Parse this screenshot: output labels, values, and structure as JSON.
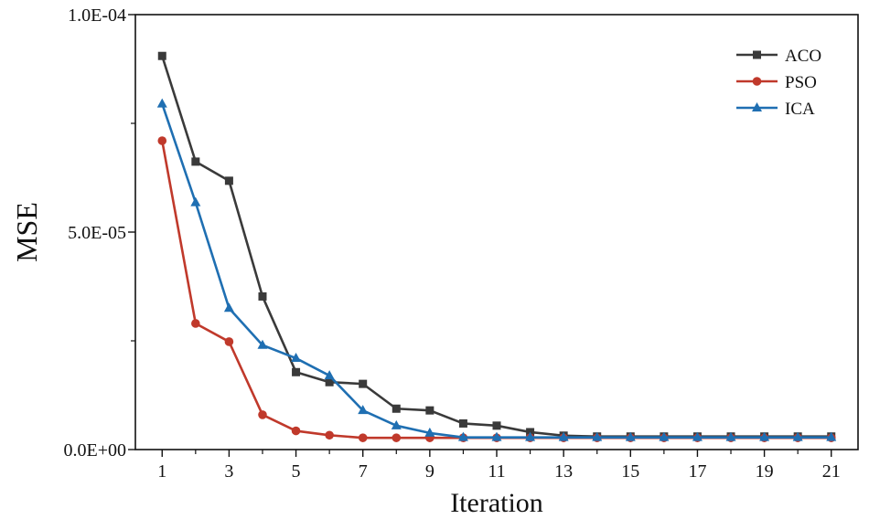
{
  "chart_data": {
    "type": "line",
    "title": "",
    "xlabel": "Iteration",
    "ylabel": "MSE",
    "xlim": [
      0.2,
      21.8
    ],
    "ylim": [
      0,
      0.0001
    ],
    "x_ticks": [
      1,
      3,
      5,
      7,
      9,
      11,
      13,
      15,
      17,
      19,
      21
    ],
    "x_tick_labels": [
      "1",
      "3",
      "5",
      "7",
      "9",
      "11",
      "13",
      "15",
      "17",
      "19",
      "21"
    ],
    "y_ticks": [
      0,
      5e-05,
      0.0001
    ],
    "y_tick_labels": [
      "0.0E+00",
      "5.0E-05",
      "1.0E-04"
    ],
    "y_minor_ticks": [
      2.5e-05,
      7.5e-05
    ],
    "grid": false,
    "legend_position": "top-right",
    "x": [
      1,
      2,
      3,
      4,
      5,
      6,
      7,
      8,
      9,
      10,
      11,
      12,
      13,
      14,
      15,
      16,
      17,
      18,
      19,
      20,
      21
    ],
    "series": [
      {
        "name": "ACO",
        "color": "#3a3a3a",
        "marker": "square",
        "values": [
          9.05e-05,
          6.62e-05,
          6.18e-05,
          3.52e-05,
          1.78e-05,
          1.55e-05,
          1.51e-05,
          9.4e-06,
          9e-06,
          6e-06,
          5.5e-06,
          4e-06,
          3.2e-06,
          3e-06,
          3e-06,
          3e-06,
          3e-06,
          3e-06,
          3e-06,
          3e-06,
          3e-06
        ]
      },
      {
        "name": "PSO",
        "color": "#c0392b",
        "marker": "circle",
        "values": [
          7.1e-05,
          2.9e-05,
          2.48e-05,
          8e-06,
          4.3e-06,
          3.3e-06,
          2.7e-06,
          2.7e-06,
          2.7e-06,
          2.7e-06,
          2.7e-06,
          2.7e-06,
          2.7e-06,
          2.7e-06,
          2.7e-06,
          2.7e-06,
          2.7e-06,
          2.7e-06,
          2.7e-06,
          2.7e-06,
          2.7e-06
        ]
      },
      {
        "name": "ICA",
        "color": "#1f6fb2",
        "marker": "triangle",
        "values": [
          7.95e-05,
          5.68e-05,
          3.25e-05,
          2.4e-05,
          2.1e-05,
          1.7e-05,
          9e-06,
          5.5e-06,
          3.8e-06,
          2.8e-06,
          2.8e-06,
          2.8e-06,
          2.8e-06,
          2.8e-06,
          2.8e-06,
          2.8e-06,
          2.8e-06,
          2.8e-06,
          2.8e-06,
          2.8e-06,
          2.8e-06
        ]
      }
    ]
  }
}
